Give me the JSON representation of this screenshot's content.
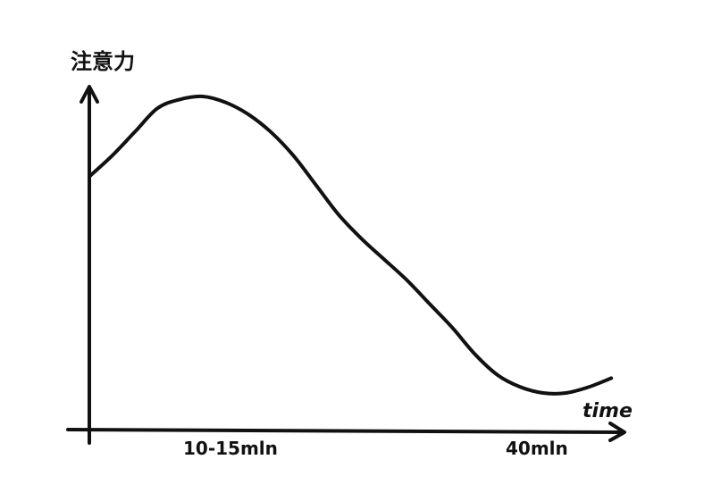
{
  "chart_data": {
    "type": "line",
    "ylabel": "注意力",
    "xlabel": "time",
    "tick_labels": [
      "10-15mln",
      "40mln"
    ],
    "series": [
      {
        "x": [
          0,
          2,
          4,
          6,
          8,
          10,
          12,
          14,
          16,
          18,
          20,
          22,
          24,
          26,
          28,
          30,
          32,
          34,
          36,
          38,
          40,
          42,
          44,
          46
        ],
        "values": [
          0.73,
          0.8,
          0.88,
          0.96,
          0.99,
          1.0,
          0.98,
          0.94,
          0.88,
          0.8,
          0.7,
          0.6,
          0.52,
          0.45,
          0.38,
          0.3,
          0.22,
          0.13,
          0.06,
          0.02,
          0.0,
          0.0,
          0.02,
          0.05
        ]
      }
    ],
    "grid": false,
    "color": "#111111"
  }
}
